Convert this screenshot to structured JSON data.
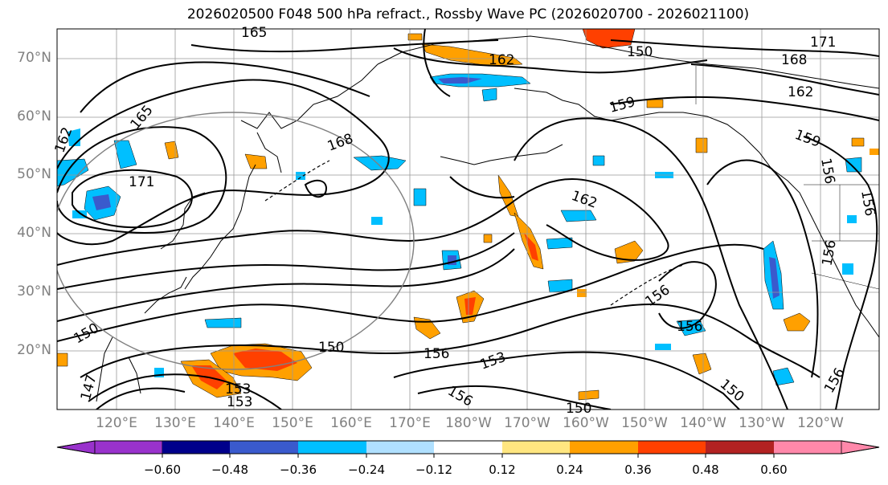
{
  "title": "2026020500 F048 500 hPa refract., Rossby Wave PC (2026020700 - 2026021100)",
  "map": {
    "lat_labels": [
      "70°N",
      "60°N",
      "50°N",
      "40°N",
      "30°N",
      "20°N"
    ],
    "lon_labels": [
      "120°E",
      "130°E",
      "140°E",
      "150°E",
      "160°E",
      "170°E",
      "180°W",
      "170°W",
      "160°W",
      "150°W",
      "140°W",
      "130°W",
      "120°W"
    ],
    "contour_labels": [
      "165",
      "162",
      "168",
      "171",
      "165",
      "162",
      "159",
      "159",
      "162",
      "168",
      "171",
      "156",
      "156",
      "156",
      "156",
      "162",
      "156",
      "150",
      "150",
      "156",
      "153",
      "153",
      "150",
      "147",
      "153",
      "156",
      "150",
      "156",
      "150"
    ],
    "fill_colors": {
      "neg_strong": "#2a2ad8",
      "neg_mid": "#3a5ad0",
      "neg_light": "#00bfff",
      "neg_pale": "#b3e2ff",
      "pos_pale": "#ffe680",
      "pos_light": "#ff9f00",
      "pos_mid": "#ff4000",
      "pos_strong": "#b22222"
    }
  },
  "colorbar": {
    "ticks": [
      "−0.60",
      "−0.48",
      "−0.36",
      "−0.24",
      "−0.12",
      "0.12",
      "0.24",
      "0.36",
      "0.48",
      "0.60"
    ],
    "colors": [
      "#9932cc",
      "#00008b",
      "#3a5acd",
      "#00bfff",
      "#b0e0ff",
      "#ffffff",
      "#ffe680",
      "#ffa000",
      "#ff4000",
      "#b22222",
      "#ff88aa"
    ]
  }
}
